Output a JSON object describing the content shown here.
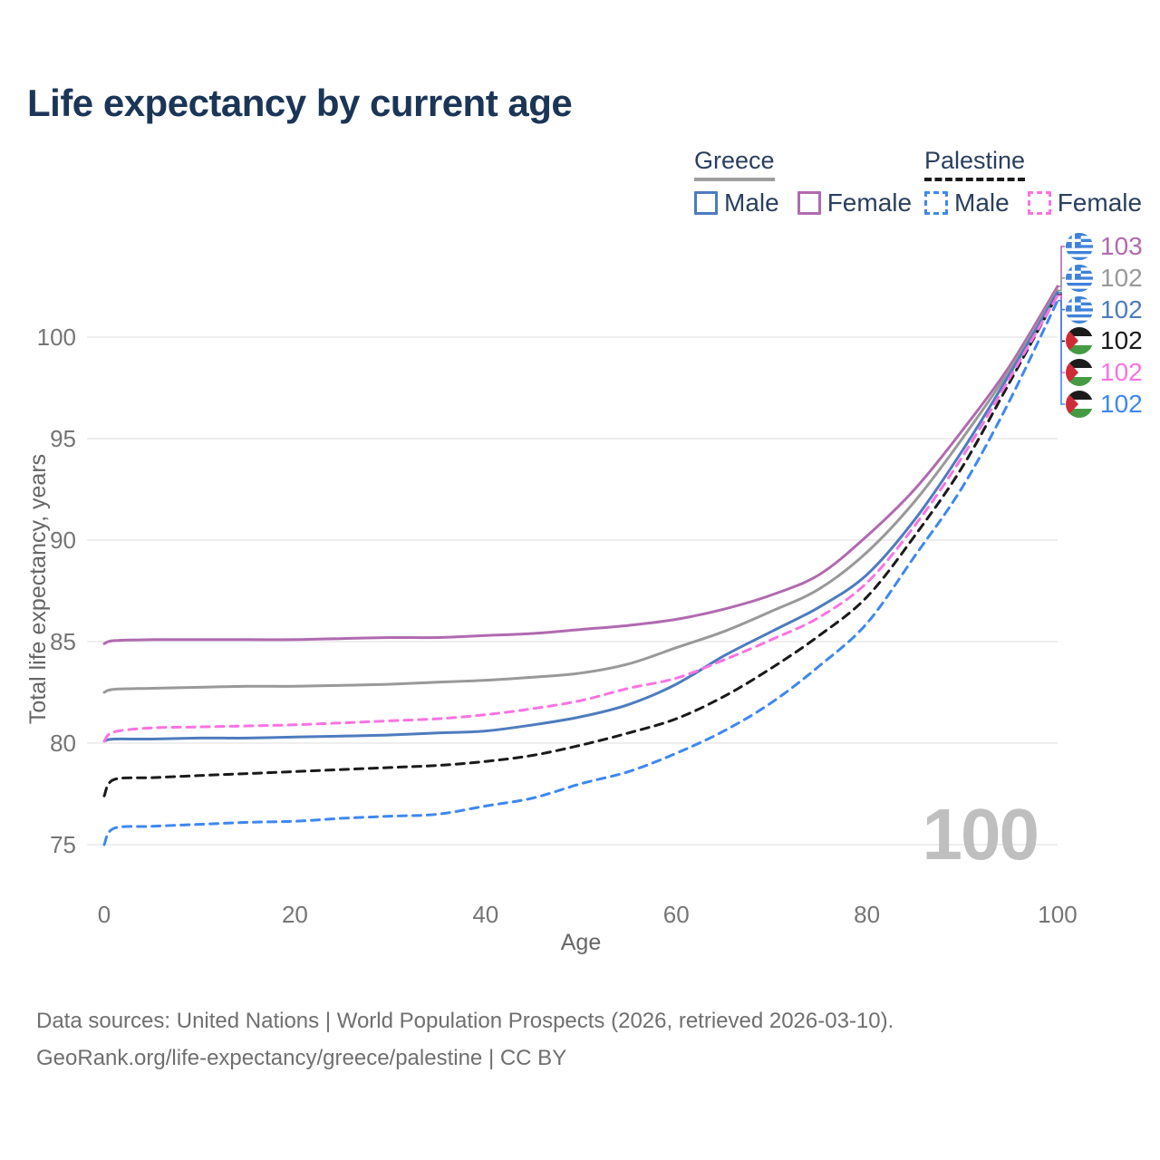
{
  "page": {
    "title": "Life expectancy by current age"
  },
  "legend": {
    "groups": [
      {
        "label": "Greece",
        "line_style": "solid",
        "underline_color": "#9e9e9e",
        "items": [
          {
            "label": "Male",
            "color": "#4d7cbe",
            "style": "solid"
          },
          {
            "label": "Female",
            "color": "#b06ab0",
            "style": "solid"
          }
        ]
      },
      {
        "label": "Palestine",
        "line_style": "dashed",
        "underline_color": "#1a1a1a",
        "items": [
          {
            "label": "Male",
            "color": "#3e87f2",
            "style": "dashed"
          },
          {
            "label": "Female",
            "color": "#f973e2",
            "style": "dashed"
          }
        ]
      }
    ]
  },
  "chart_data": {
    "type": "line",
    "title": "Life expectancy by current age",
    "xlabel": "Age",
    "ylabel": "Total life expectancy, years",
    "xlim": [
      0,
      100
    ],
    "ylim": [
      74,
      103.5
    ],
    "xticks": [
      0,
      20,
      40,
      60,
      80,
      100
    ],
    "yticks": [
      75,
      80,
      85,
      90,
      95,
      100
    ],
    "grid": "horizontal",
    "legend_position": "top-right",
    "watermark": "100",
    "x": [
      0,
      1,
      5,
      10,
      15,
      20,
      25,
      30,
      35,
      40,
      45,
      50,
      55,
      60,
      65,
      70,
      75,
      80,
      85,
      90,
      95,
      100
    ],
    "series": [
      {
        "name": "Greece Female",
        "country": "Greece",
        "sex": "Female",
        "style": "solid",
        "color": "#b06ab0",
        "end_label": "103",
        "values": [
          84.9,
          85.05,
          85.1,
          85.1,
          85.1,
          85.1,
          85.15,
          85.2,
          85.2,
          85.3,
          85.4,
          85.6,
          85.8,
          86.1,
          86.6,
          87.3,
          88.3,
          90.2,
          92.5,
          95.4,
          98.6,
          102.5
        ]
      },
      {
        "name": "Greece Both sexes",
        "country": "Greece",
        "sex": "Both",
        "style": "solid",
        "color": "#999999",
        "end_label": "102",
        "values": [
          82.5,
          82.65,
          82.7,
          82.75,
          82.8,
          82.8,
          82.85,
          82.9,
          83.0,
          83.1,
          83.25,
          83.45,
          83.9,
          84.7,
          85.5,
          86.5,
          87.6,
          89.4,
          91.9,
          95.0,
          98.4,
          102.3
        ]
      },
      {
        "name": "Greece Male",
        "country": "Greece",
        "sex": "Male",
        "style": "solid",
        "color": "#4d7cbe",
        "end_label": "102",
        "values": [
          80.1,
          80.2,
          80.2,
          80.25,
          80.25,
          80.3,
          80.35,
          80.4,
          80.5,
          80.6,
          80.9,
          81.3,
          81.9,
          82.9,
          84.3,
          85.5,
          86.7,
          88.3,
          91.0,
          94.4,
          98.2,
          102.2
        ]
      },
      {
        "name": "Palestine Both sexes",
        "country": "Palestine",
        "sex": "Both",
        "style": "dashed",
        "color": "#1a1a1a",
        "end_label": "102",
        "values": [
          77.4,
          78.2,
          78.3,
          78.4,
          78.5,
          78.6,
          78.7,
          78.8,
          78.9,
          79.1,
          79.4,
          79.9,
          80.5,
          81.2,
          82.3,
          83.7,
          85.3,
          87.2,
          90.2,
          93.6,
          97.8,
          102.1
        ]
      },
      {
        "name": "Palestine Female",
        "country": "Palestine",
        "sex": "Female",
        "style": "dashed",
        "color": "#f973e2",
        "end_label": "102",
        "values": [
          80.1,
          80.55,
          80.75,
          80.8,
          80.85,
          80.9,
          81.0,
          81.1,
          81.2,
          81.4,
          81.7,
          82.1,
          82.7,
          83.2,
          84.1,
          85.1,
          86.2,
          87.9,
          90.7,
          94.1,
          98.0,
          102.05
        ]
      },
      {
        "name": "Palestine Male",
        "country": "Palestine",
        "sex": "Male",
        "style": "dashed",
        "color": "#3e87f2",
        "end_label": "102",
        "values": [
          75.0,
          75.8,
          75.9,
          76.0,
          76.1,
          76.15,
          76.3,
          76.4,
          76.5,
          76.9,
          77.3,
          78.0,
          78.6,
          79.5,
          80.6,
          82.0,
          83.8,
          85.9,
          89.2,
          92.6,
          96.9,
          101.8
        ]
      }
    ]
  },
  "footer": {
    "line1": "Data sources: United Nations | World Population Prospects (2026, retrieved 2026-03-10).",
    "line2": "GeoRank.org/life-expectancy/greece/palestine | CC BY"
  }
}
